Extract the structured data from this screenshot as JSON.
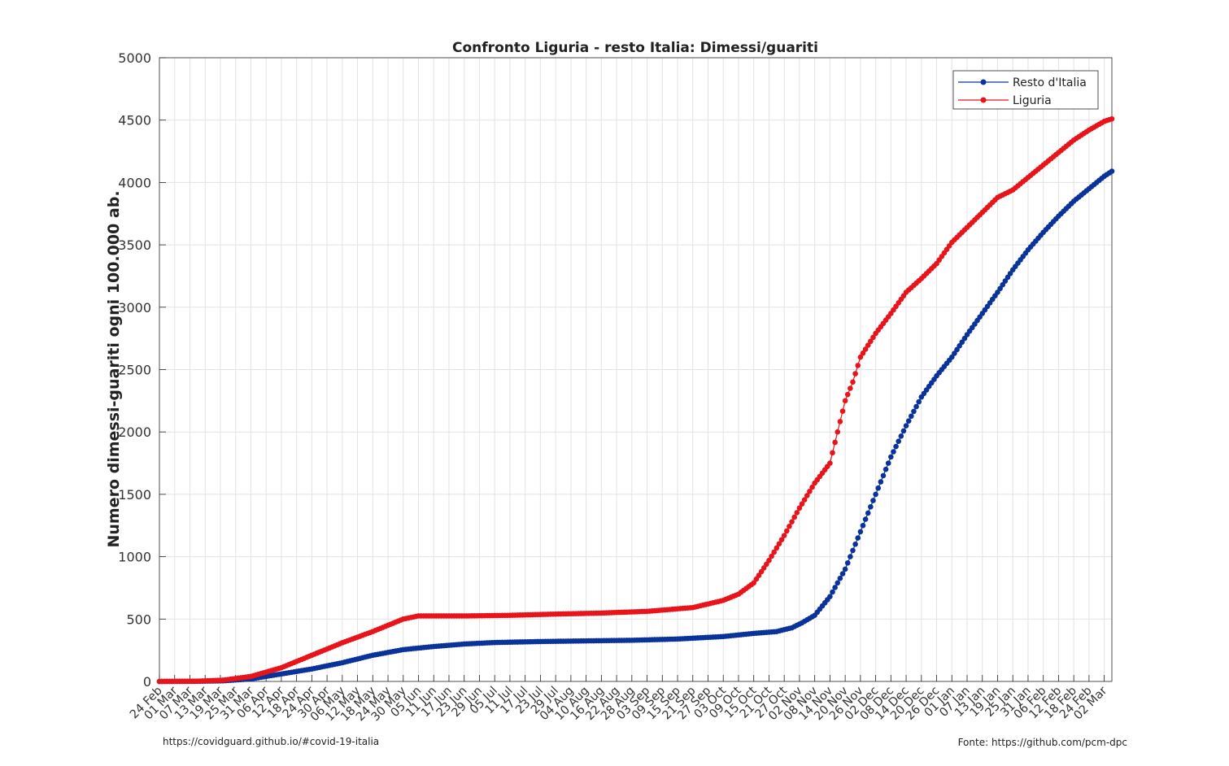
{
  "chart_data": {
    "type": "line",
    "title": "Confronto Liguria - resto Italia: Dimessi/guariti",
    "xlabel": "",
    "ylabel": "Numero dimessi-guariti ogni 100.000 ab.",
    "ylim": [
      0,
      5000
    ],
    "yticks": [
      0,
      500,
      1000,
      1500,
      2000,
      2500,
      3000,
      3500,
      4000,
      4500,
      5000
    ],
    "x_start": "2020-02-24",
    "x_end": "2021-03-05",
    "xtick_labels": [
      "24 Feb",
      "01 Mar",
      "07 Mar",
      "13 Mar",
      "19 Mar",
      "25 Mar",
      "31 Mar",
      "06 Apr",
      "12 Apr",
      "18 Apr",
      "24 Apr",
      "30 Apr",
      "06 May",
      "12 May",
      "18 May",
      "24 May",
      "30 May",
      "05 Jun",
      "11 Jun",
      "17 Jun",
      "23 Jun",
      "29 Jun",
      "05 Jul",
      "11 Jul",
      "17 Jul",
      "23 Jul",
      "29 Jul",
      "04 Aug",
      "10 Aug",
      "16 Aug",
      "22 Aug",
      "28 Aug",
      "03 Sep",
      "09 Sep",
      "15 Sep",
      "21 Sep",
      "27 Sep",
      "03 Oct",
      "09 Oct",
      "15 Oct",
      "21 Oct",
      "27 Oct",
      "02 Nov",
      "08 Nov",
      "14 Nov",
      "20 Nov",
      "26 Nov",
      "02 Dec",
      "08 Dec",
      "14 Dec",
      "20 Dec",
      "26 Dec",
      "01 Jan",
      "07 Jan",
      "13 Jan",
      "19 Jan",
      "25 Jan",
      "31 Jan",
      "06 Feb",
      "12 Feb",
      "18 Feb",
      "24 Feb",
      "02 Mar"
    ],
    "grid": true,
    "legend_position": "top-right",
    "series": [
      {
        "name": "Resto d'Italia",
        "color": "#0a3399",
        "x": [
          "2020-02-24",
          "2020-03-10",
          "2020-03-20",
          "2020-03-31",
          "2020-04-12",
          "2020-04-24",
          "2020-05-06",
          "2020-05-18",
          "2020-05-30",
          "2020-06-11",
          "2020-06-23",
          "2020-07-05",
          "2020-07-23",
          "2020-08-10",
          "2020-08-28",
          "2020-09-15",
          "2020-10-03",
          "2020-10-15",
          "2020-10-24",
          "2020-10-30",
          "2020-11-03",
          "2020-11-08",
          "2020-11-14",
          "2020-11-20",
          "2020-11-26",
          "2020-12-02",
          "2020-12-08",
          "2020-12-14",
          "2020-12-20",
          "2020-12-26",
          "2021-01-01",
          "2021-01-07",
          "2021-01-13",
          "2021-01-19",
          "2021-01-25",
          "2021-01-31",
          "2021-02-06",
          "2021-02-12",
          "2021-02-18",
          "2021-02-24",
          "2021-03-02",
          "2021-03-05"
        ],
        "y": [
          0,
          1,
          5,
          20,
          60,
          100,
          150,
          210,
          255,
          280,
          300,
          312,
          320,
          325,
          330,
          340,
          360,
          385,
          400,
          430,
          470,
          530,
          680,
          900,
          1200,
          1500,
          1800,
          2050,
          2280,
          2450,
          2600,
          2780,
          2950,
          3120,
          3300,
          3460,
          3600,
          3730,
          3850,
          3950,
          4050,
          4090
        ]
      },
      {
        "name": "Liguria",
        "color": "#e8141b",
        "x": [
          "2020-02-24",
          "2020-03-10",
          "2020-03-20",
          "2020-03-31",
          "2020-04-12",
          "2020-04-24",
          "2020-05-06",
          "2020-05-18",
          "2020-05-30",
          "2020-06-05",
          "2020-06-23",
          "2020-07-11",
          "2020-07-29",
          "2020-08-16",
          "2020-09-03",
          "2020-09-21",
          "2020-10-03",
          "2020-10-09",
          "2020-10-15",
          "2020-10-21",
          "2020-10-27",
          "2020-11-02",
          "2020-11-08",
          "2020-11-14",
          "2020-11-17",
          "2020-11-20",
          "2020-11-23",
          "2020-11-26",
          "2020-12-02",
          "2020-12-08",
          "2020-12-14",
          "2020-12-20",
          "2020-12-26",
          "2021-01-01",
          "2021-01-07",
          "2021-01-13",
          "2021-01-19",
          "2021-01-25",
          "2021-01-31",
          "2021-02-06",
          "2021-02-12",
          "2021-02-18",
          "2021-02-24",
          "2021-03-02",
          "2021-03-05"
        ],
        "y": [
          0,
          2,
          10,
          40,
          110,
          210,
          310,
          400,
          500,
          525,
          525,
          530,
          540,
          548,
          562,
          592,
          650,
          700,
          790,
          970,
          1170,
          1390,
          1590,
          1750,
          2000,
          2250,
          2400,
          2600,
          2790,
          2950,
          3120,
          3230,
          3350,
          3520,
          3640,
          3760,
          3880,
          3940,
          4040,
          4140,
          4240,
          4340,
          4420,
          4490,
          4510
        ]
      }
    ]
  },
  "footer": {
    "source_left": "https://covidguard.github.io/#covid-19-italia",
    "source_right": "Fonte: https://github.com/pcm-dpc"
  }
}
